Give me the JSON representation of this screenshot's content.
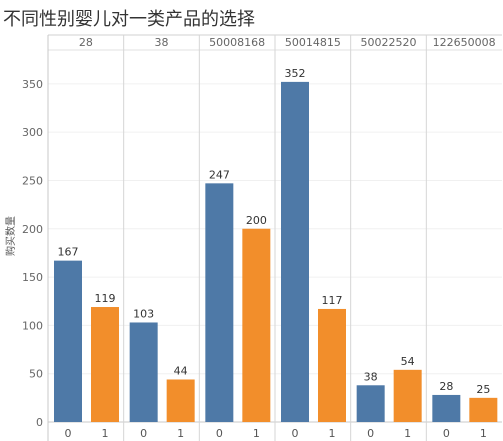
{
  "chart_data": {
    "type": "bar",
    "title": "不同性别婴儿对一类产品的选择",
    "ylabel": "购买数量",
    "facets": [
      {
        "label": "28",
        "categories": [
          "0",
          "1"
        ],
        "values": [
          167,
          119
        ]
      },
      {
        "label": "38",
        "categories": [
          "0",
          "1"
        ],
        "values": [
          103,
          44
        ]
      },
      {
        "label": "50008168",
        "categories": [
          "0",
          "1"
        ],
        "values": [
          247,
          200
        ]
      },
      {
        "label": "50014815",
        "categories": [
          "0",
          "1"
        ],
        "values": [
          352,
          117
        ]
      },
      {
        "label": "50022520",
        "categories": [
          "0",
          "1"
        ],
        "values": [
          38,
          54
        ]
      },
      {
        "label": "122650008",
        "categories": [
          "0",
          "1"
        ],
        "values": [
          28,
          25
        ]
      }
    ],
    "ylim": [
      0,
      385
    ],
    "yticks": [
      0,
      50,
      100,
      150,
      200,
      250,
      300,
      350
    ],
    "grid": true,
    "data_labels": true,
    "colors": [
      "#4e79a7",
      "#f28e2b"
    ]
  }
}
